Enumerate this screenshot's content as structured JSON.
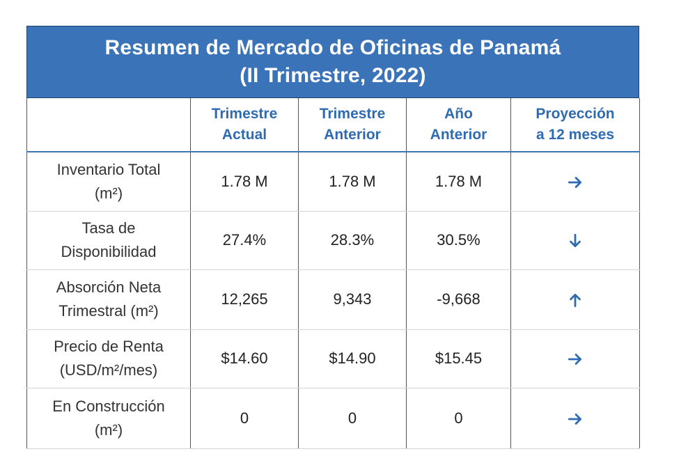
{
  "title": {
    "line1": "Resumen de Mercado de Oficinas de Panamá",
    "line2": "(II Trimestre, 2022)"
  },
  "headers": {
    "col1": {
      "line1": "Trimestre",
      "line2": "Actual"
    },
    "col2": {
      "line1": "Trimestre",
      "line2": "Anterior"
    },
    "col3": {
      "line1": "Año",
      "line2": "Anterior"
    },
    "col4": {
      "line1": "Proyección",
      "line2": "a 12 meses"
    }
  },
  "rows": [
    {
      "label1": "Inventario Total",
      "label2": "(m²)",
      "current": "1.78 M",
      "previous": "1.78 M",
      "last_year": "1.78 M",
      "projection_icon": "arrow-right-icon"
    },
    {
      "label1": "Tasa de",
      "label2": "Disponibilidad",
      "current": "27.4%",
      "previous": "28.3%",
      "last_year": "30.5%",
      "projection_icon": "arrow-down-icon"
    },
    {
      "label1": "Absorción Neta",
      "label2": "Trimestral (m²)",
      "current": "12,265",
      "previous": "9,343",
      "last_year": "-9,668",
      "projection_icon": "arrow-up-icon"
    },
    {
      "label1": "Precio de Renta",
      "label2": "(USD/m²/mes)",
      "current": "$14.60",
      "previous": "$14.90",
      "last_year": "$15.45",
      "projection_icon": "arrow-right-icon"
    },
    {
      "label1": "En Construcción",
      "label2": "(m²)",
      "current": "0",
      "previous": "0",
      "last_year": "0",
      "projection_icon": "arrow-right-icon"
    }
  ],
  "colors": {
    "title_background": "#3a73b8",
    "header_text": "#2f6bb0",
    "arrow": "#2f6bb0"
  }
}
